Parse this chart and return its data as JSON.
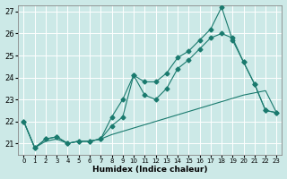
{
  "xlabel": "Humidex (Indice chaleur)",
  "xlim": [
    -0.5,
    23.5
  ],
  "ylim": [
    20.5,
    27.3
  ],
  "yticks": [
    21,
    22,
    23,
    24,
    25,
    26,
    27
  ],
  "xticks": [
    0,
    1,
    2,
    3,
    4,
    5,
    6,
    7,
    8,
    9,
    10,
    11,
    12,
    13,
    14,
    15,
    16,
    17,
    18,
    19,
    20,
    21,
    22,
    23
  ],
  "background_color": "#cce9e7",
  "grid_color": "#ffffff",
  "line_color": "#1a7a6e",
  "lines": [
    {
      "x": [
        0,
        1,
        2,
        3,
        4,
        5,
        6,
        7,
        8,
        9,
        10,
        11,
        12,
        13,
        14,
        15,
        16,
        17,
        18,
        19,
        20,
        21,
        22,
        23
      ],
      "y": [
        22.0,
        20.8,
        21.2,
        21.3,
        21.0,
        21.1,
        21.1,
        21.2,
        22.2,
        23.0,
        24.1,
        23.8,
        23.8,
        24.2,
        24.9,
        25.2,
        25.7,
        26.2,
        27.2,
        25.7,
        24.7,
        23.7,
        22.5,
        22.4
      ],
      "marker": "D",
      "markersize": 2.5
    },
    {
      "x": [
        0,
        1,
        2,
        3,
        4,
        5,
        6,
        7,
        8,
        9,
        10,
        11,
        12,
        13,
        14,
        15,
        16,
        17,
        18,
        19,
        20,
        21,
        22,
        23
      ],
      "y": [
        22.0,
        20.8,
        21.2,
        21.3,
        21.0,
        21.1,
        21.1,
        21.2,
        21.8,
        22.2,
        24.1,
        23.2,
        23.0,
        23.5,
        24.4,
        24.8,
        25.3,
        25.8,
        26.0,
        25.8,
        24.7,
        23.7,
        22.5,
        22.4
      ],
      "marker": "D",
      "markersize": 2.5
    },
    {
      "x": [
        0,
        1,
        2,
        3,
        4,
        5,
        6,
        7,
        8,
        9,
        10,
        11,
        12,
        13,
        14,
        15,
        16,
        17,
        18,
        19,
        20,
        21,
        22,
        23
      ],
      "y": [
        22.0,
        20.8,
        21.1,
        21.2,
        21.0,
        21.1,
        21.1,
        21.2,
        21.4,
        21.55,
        21.7,
        21.85,
        22.0,
        22.15,
        22.3,
        22.45,
        22.6,
        22.75,
        22.9,
        23.05,
        23.2,
        23.3,
        23.4,
        22.4
      ],
      "marker": null,
      "markersize": 0
    }
  ]
}
